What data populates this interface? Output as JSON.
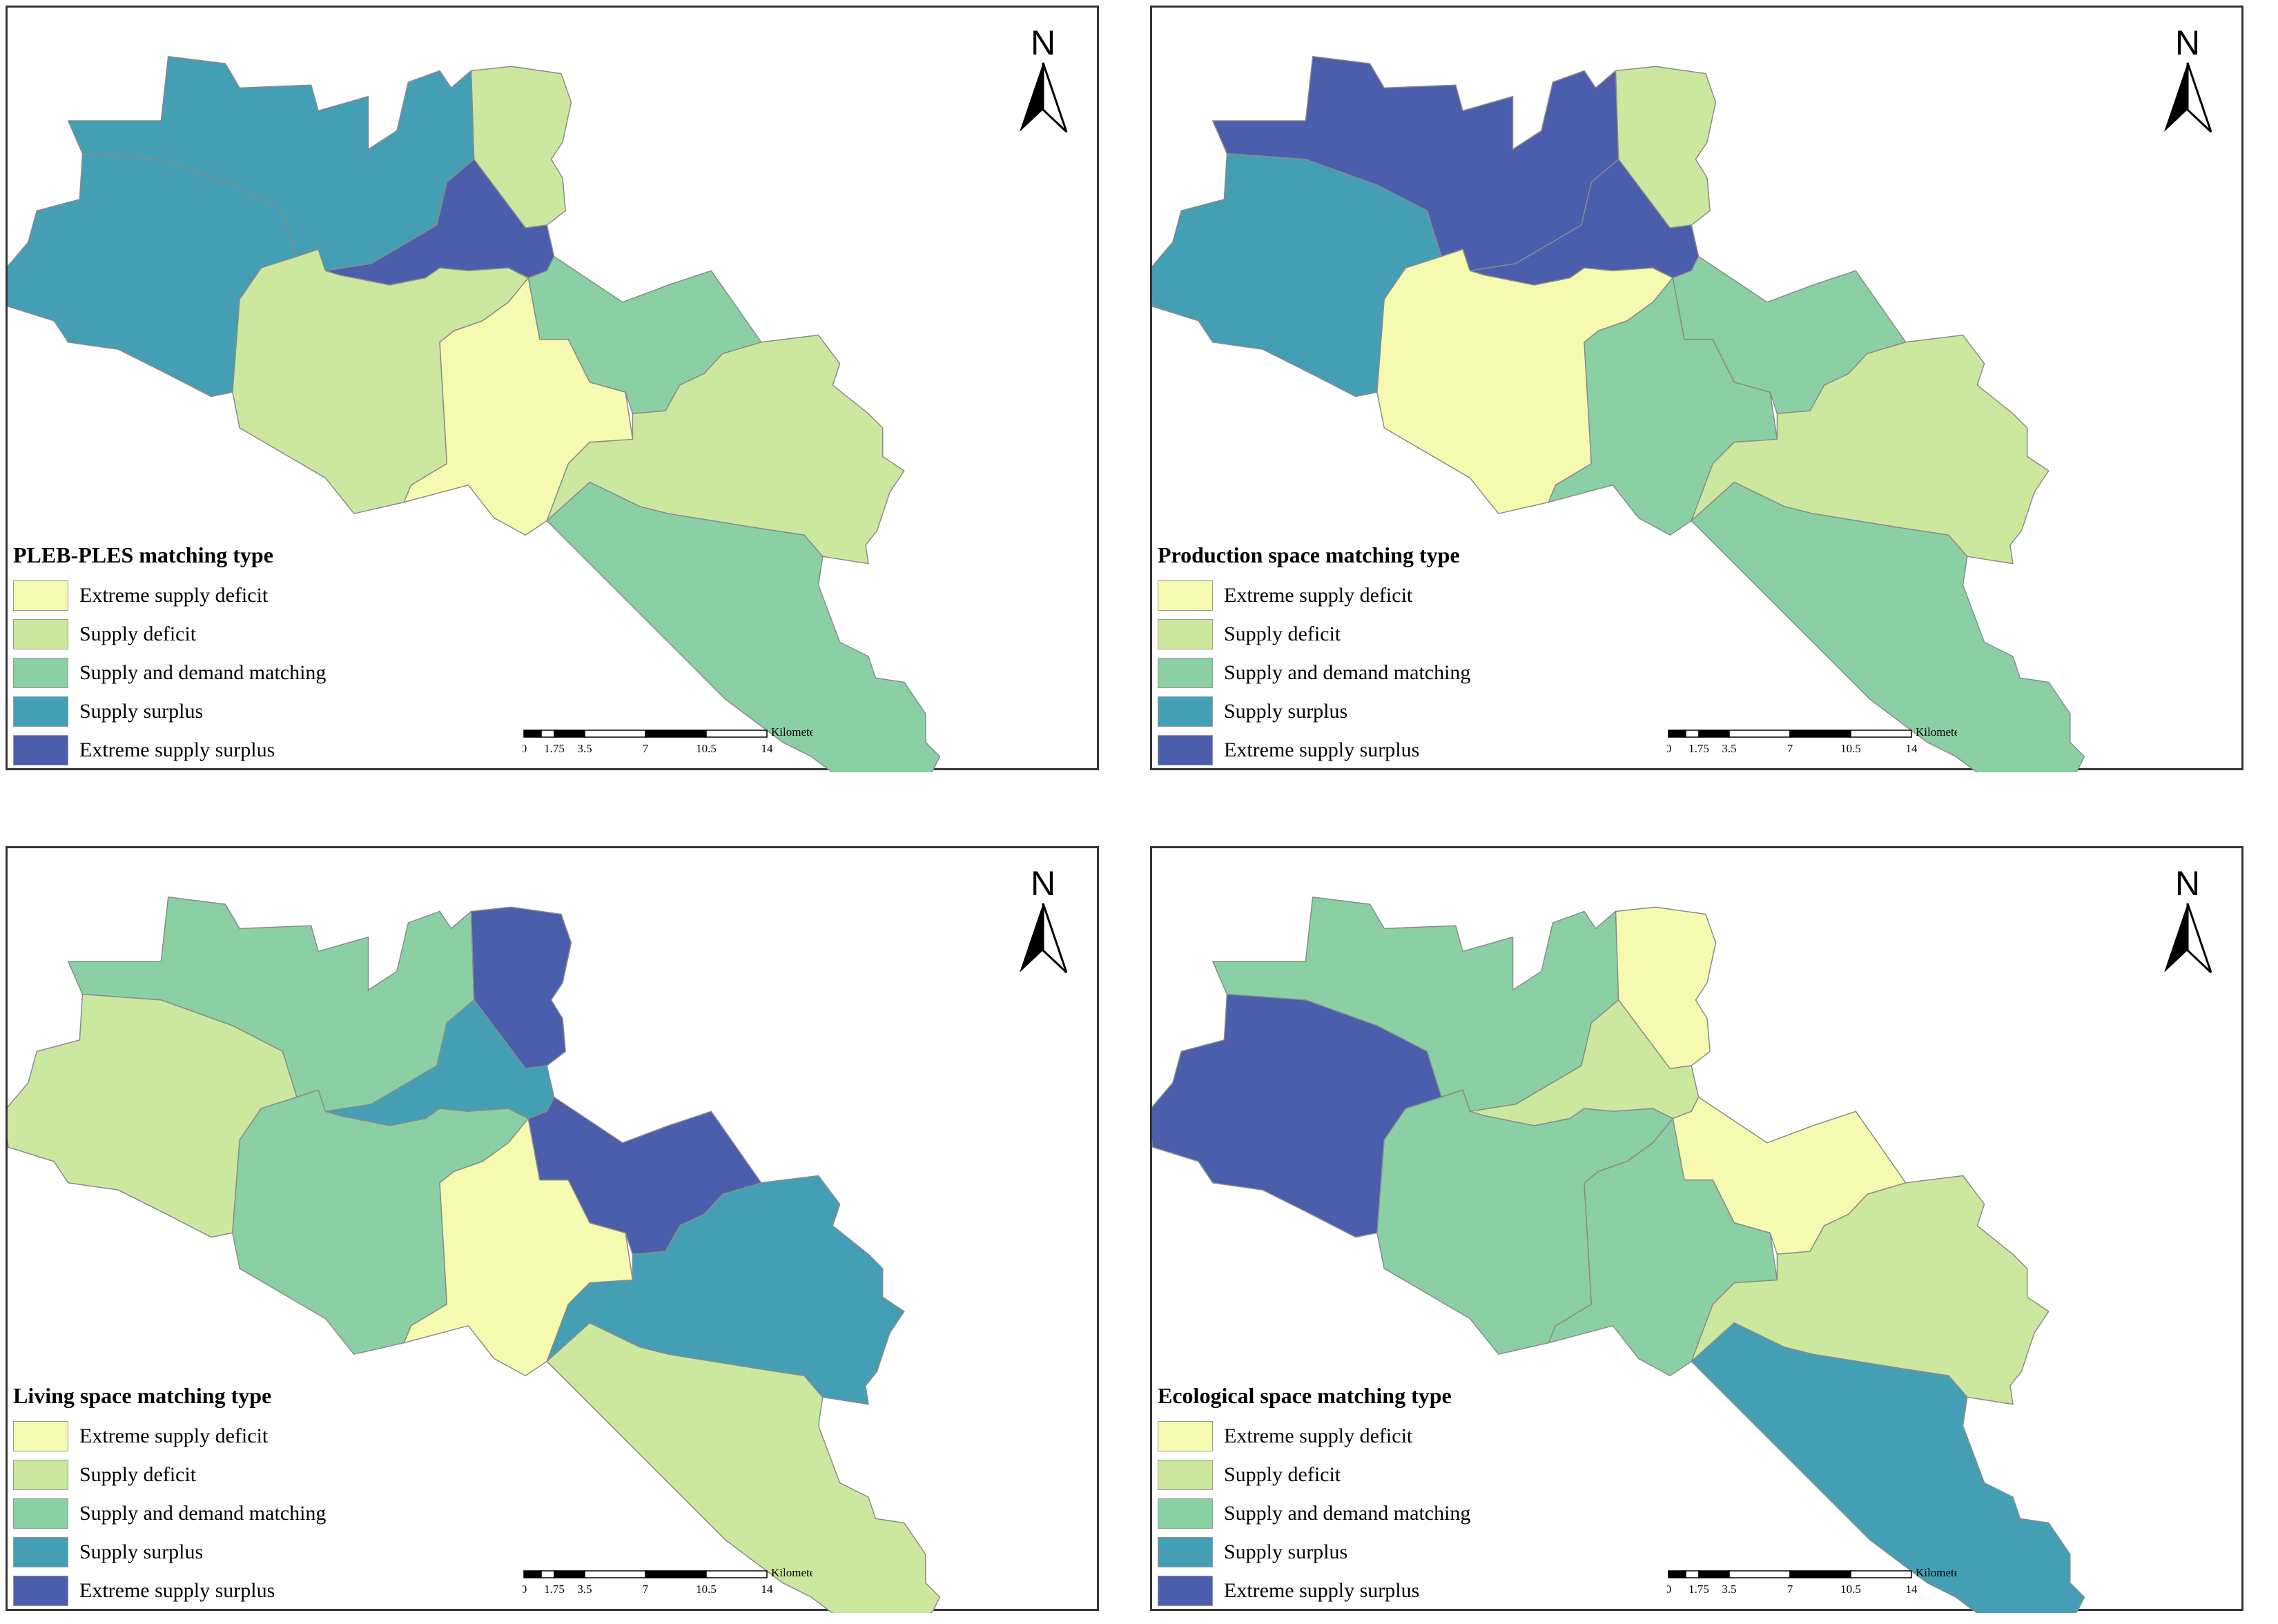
{
  "categories": [
    {
      "key": "esd",
      "label": "Extreme supply deficit",
      "color": "#f5fab0"
    },
    {
      "key": "sd",
      "label": "Supply deficit",
      "color": "#cce89f"
    },
    {
      "key": "sdm",
      "label": "Supply and demand matching",
      "color": "#8ad0a4"
    },
    {
      "key": "ss",
      "label": "Supply surplus",
      "color": "#449fb5"
    },
    {
      "key": "ess",
      "label": "Extreme supply surplus",
      "color": "#4a5eac"
    }
  ],
  "scale": {
    "unit": "Kilometers",
    "ticks": [
      "0",
      "1.75",
      "3.5",
      "7",
      "10.5",
      "14"
    ]
  },
  "north_label": "N",
  "panels": [
    {
      "id": "pleb-ples",
      "title": "PLEB-PLES matching type",
      "regions": {
        "A": "ss",
        "B": "ss",
        "C": "sd",
        "D": "ess",
        "E": "sd",
        "F": "esd",
        "G": "sdm",
        "H": "sd",
        "I": "sdm"
      }
    },
    {
      "id": "production",
      "title": "Production space matching type",
      "regions": {
        "A": "ess",
        "B": "ss",
        "C": "sd",
        "D": "ess",
        "E": "esd",
        "F": "sdm",
        "G": "sdm",
        "H": "sd",
        "I": "sdm"
      }
    },
    {
      "id": "living",
      "title": "Living space matching type",
      "regions": {
        "A": "sdm",
        "B": "sd",
        "C": "ess",
        "D": "ss",
        "E": "sdm",
        "F": "esd",
        "G": "ess",
        "H": "ss",
        "I": "sd"
      }
    },
    {
      "id": "ecological",
      "title": "Ecological space matching type",
      "regions": {
        "A": "sdm",
        "B": "ess",
        "C": "esd",
        "D": "sd",
        "E": "sdm",
        "F": "sdm",
        "G": "esd",
        "H": "sd",
        "I": "ss"
      }
    }
  ]
}
